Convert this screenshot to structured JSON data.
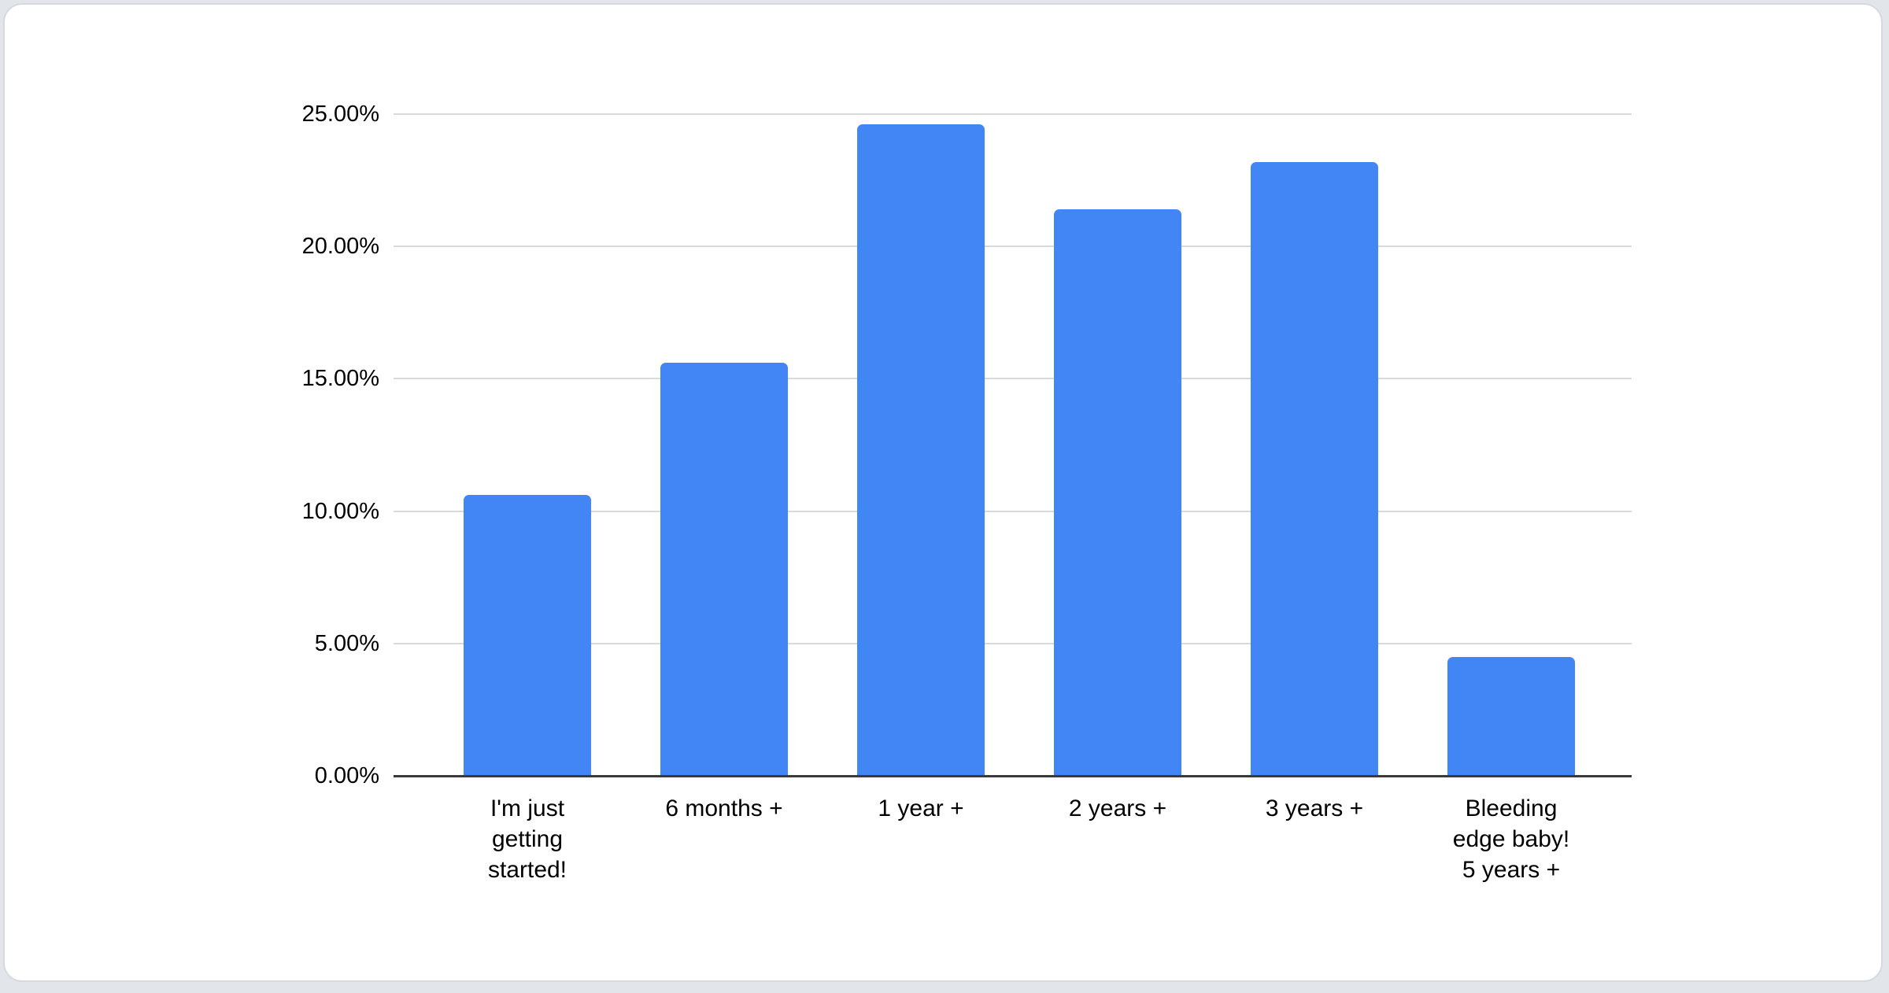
{
  "page": {
    "background_color": "#e2e5e9",
    "card_background_color": "#ffffff",
    "card_border_color": "#d6dade"
  },
  "chart_data": {
    "type": "bar",
    "title": "",
    "xlabel": "",
    "ylabel": "",
    "legend": "none",
    "grid": true,
    "ylim": [
      0,
      25
    ],
    "categories": [
      "I'm just\ngetting\nstarted!",
      "6 months +",
      "1 year +",
      "2 years +",
      "3 years +",
      "Bleeding\nedge baby!\n5 years +"
    ],
    "values": [
      10.6,
      15.6,
      24.6,
      21.4,
      23.2,
      4.5
    ],
    "value_unit": "%",
    "y_ticks": [
      {
        "value": 0,
        "label": "0.00%"
      },
      {
        "value": 5,
        "label": "5.00%"
      },
      {
        "value": 10,
        "label": "10.00%"
      },
      {
        "value": 15,
        "label": "15.00%"
      },
      {
        "value": 20,
        "label": "20.00%"
      },
      {
        "value": 25,
        "label": "25.00%"
      }
    ],
    "bar_color": "#4285F4",
    "gridline_color": "#d9d9d9",
    "axis_line_color": "#3a3a3a",
    "label_color": "#000000"
  }
}
